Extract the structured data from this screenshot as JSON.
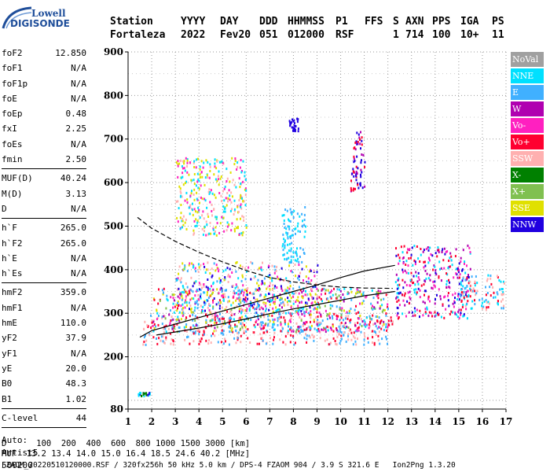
{
  "logo": {
    "lowell": "Lowell",
    "digisonde": "DIGISONDE"
  },
  "header": {
    "row1": [
      "Station",
      "YYYY",
      "DAY",
      "DDD",
      "HHMMSS",
      "P1",
      "FFS",
      "S",
      "AXN",
      "PPS",
      "IGA",
      "PS"
    ],
    "row2": [
      "Fortaleza",
      "2022",
      "Fev20",
      "051",
      "012000",
      "RSF",
      "",
      "1",
      "714",
      "100",
      "10+",
      "11"
    ]
  },
  "params": {
    "group1": [
      {
        "name": "foF2",
        "value": "12.850"
      },
      {
        "name": "foF1",
        "value": "N/A"
      },
      {
        "name": "foF1p",
        "value": "N/A"
      },
      {
        "name": "foE",
        "value": "N/A"
      },
      {
        "name": "foEp",
        "value": "0.48"
      },
      {
        "name": "fxI",
        "value": "2.25"
      },
      {
        "name": "foEs",
        "value": "N/A"
      },
      {
        "name": "fmin",
        "value": "2.50"
      }
    ],
    "group2": [
      {
        "name": "MUF(D)",
        "value": "40.24"
      },
      {
        "name": "M(D)",
        "value": "3.13"
      },
      {
        "name": "D",
        "value": "N/A"
      }
    ],
    "group3": [
      {
        "name": "h`F",
        "value": "265.0"
      },
      {
        "name": "h`F2",
        "value": "265.0"
      },
      {
        "name": "h`E",
        "value": "N/A"
      },
      {
        "name": "h`Es",
        "value": "N/A"
      }
    ],
    "group4": [
      {
        "name": "hmF2",
        "value": "359.0"
      },
      {
        "name": "hmF1",
        "value": "N/A"
      },
      {
        "name": "hmE",
        "value": "110.0"
      },
      {
        "name": "yF2",
        "value": "37.9"
      },
      {
        "name": "yF1",
        "value": "N/A"
      },
      {
        "name": "yE",
        "value": "20.0"
      },
      {
        "name": "B0",
        "value": "48.3"
      },
      {
        "name": "B1",
        "value": "1.02"
      }
    ],
    "group5": [
      {
        "name": "C-level",
        "value": "44"
      }
    ],
    "extra": [
      "Auto:",
      "Artist5",
      "500200"
    ]
  },
  "legend": [
    {
      "label": "NoVal",
      "color": "#a0a0a0"
    },
    {
      "label": "NNE",
      "color": "#00e0ff"
    },
    {
      "label": "E",
      "color": "#40b0ff"
    },
    {
      "label": "W",
      "color": "#b000b0"
    },
    {
      "label": "Vo-",
      "color": "#ff20c0"
    },
    {
      "label": "Vo+",
      "color": "#ff0030"
    },
    {
      "label": "SSW",
      "color": "#ffb0b0"
    },
    {
      "label": "X-",
      "color": "#008000"
    },
    {
      "label": "X+",
      "color": "#80c050"
    },
    {
      "label": "SSE",
      "color": "#e0e000"
    },
    {
      "label": "NNW",
      "color": "#2000e0"
    }
  ],
  "footer": {
    "line1": "D      100  200  400  600  800 1000 1500 3000 [km]",
    "line2": "MUF  13.2 13.4 14.0 15.0 16.4 18.5 24.6 40.2 [MHz]",
    "line3": "FZAOM_20220510120000.RSF / 320fx256h 50 kHz 5.0 km / DPS-4 FZAOM 904 / 3.9 S 321.6 E   Ion2Png 1.3.20"
  },
  "chart_data": {
    "type": "scatter",
    "xlim": [
      1,
      17
    ],
    "ylim": [
      80,
      900
    ],
    "xticks": [
      "1",
      "2",
      "3",
      "4",
      "5",
      "6",
      "7",
      "8",
      "9",
      "10",
      "11",
      "12",
      "13",
      "14",
      "15",
      "16",
      "17"
    ],
    "yticks": [
      "900",
      "800",
      "700",
      "600",
      "500",
      "400",
      "300",
      "200",
      "80"
    ],
    "grid": true,
    "traces": [
      {
        "label": "ordinary-trace",
        "x": [
          1.5,
          2,
          3,
          4,
          5,
          6,
          7,
          8,
          9,
          10,
          11,
          12.3
        ],
        "y": [
          245,
          260,
          275,
          290,
          305,
          320,
          335,
          350,
          365,
          382,
          397,
          410
        ]
      },
      {
        "label": "extraordinary-trace",
        "x": [
          2.2,
          3,
          4,
          5,
          6,
          7,
          8,
          9,
          10,
          11,
          12.3
        ],
        "y": [
          250,
          257,
          266,
          276,
          287,
          299,
          310,
          320,
          330,
          340,
          350
        ]
      },
      {
        "label": "profile-dashed",
        "x": [
          1.4,
          2,
          3,
          4,
          5,
          6,
          7,
          8,
          9,
          10,
          11,
          12.2
        ],
        "y": [
          520,
          495,
          465,
          440,
          418,
          398,
          382,
          372,
          365,
          360,
          358,
          357
        ]
      }
    ],
    "clusters": [
      {
        "x": [
          1.6,
          12.2
        ],
        "y": [
          230,
          300
        ],
        "colors": [
          "SSW",
          "E",
          "Vo+"
        ]
      },
      {
        "x": [
          2,
          12
        ],
        "y": [
          260,
          360
        ],
        "colors": [
          "E",
          "NNE",
          "SSE",
          "Vo-",
          "W",
          "Vo+",
          "X+"
        ]
      },
      {
        "x": [
          3,
          9
        ],
        "y": [
          300,
          420
        ],
        "colors": [
          "SSE",
          "E",
          "NNE",
          "Vo-",
          "NNW",
          "SSW"
        ]
      },
      {
        "x": [
          12.3,
          15.5
        ],
        "y": [
          290,
          460
        ],
        "colors": [
          "NNW",
          "W",
          "Vo+",
          "Vo-",
          "NNE"
        ]
      },
      {
        "x": [
          15,
          16.9
        ],
        "y": [
          310,
          390
        ],
        "colors": [
          "NNE",
          "E",
          "Vo+",
          "SSW"
        ]
      },
      {
        "x": [
          3,
          6
        ],
        "y": [
          480,
          660
        ],
        "colors": [
          "SSE",
          "SSW",
          "Vo-",
          "NNE"
        ]
      },
      {
        "x": [
          7.5,
          8.5
        ],
        "y": [
          420,
          550
        ],
        "colors": [
          "NNE",
          "E"
        ]
      },
      {
        "x": [
          10.4,
          11
        ],
        "y": [
          580,
          720
        ],
        "colors": [
          "NNW",
          "Vo+",
          "W"
        ]
      },
      {
        "x": [
          7.8,
          8.2
        ],
        "y": [
          720,
          750
        ],
        "colors": [
          "NNW"
        ]
      },
      {
        "x": [
          1.4,
          1.9
        ],
        "y": [
          112,
          120
        ],
        "colors": [
          "NNW",
          "NNE",
          "X-"
        ]
      }
    ]
  }
}
